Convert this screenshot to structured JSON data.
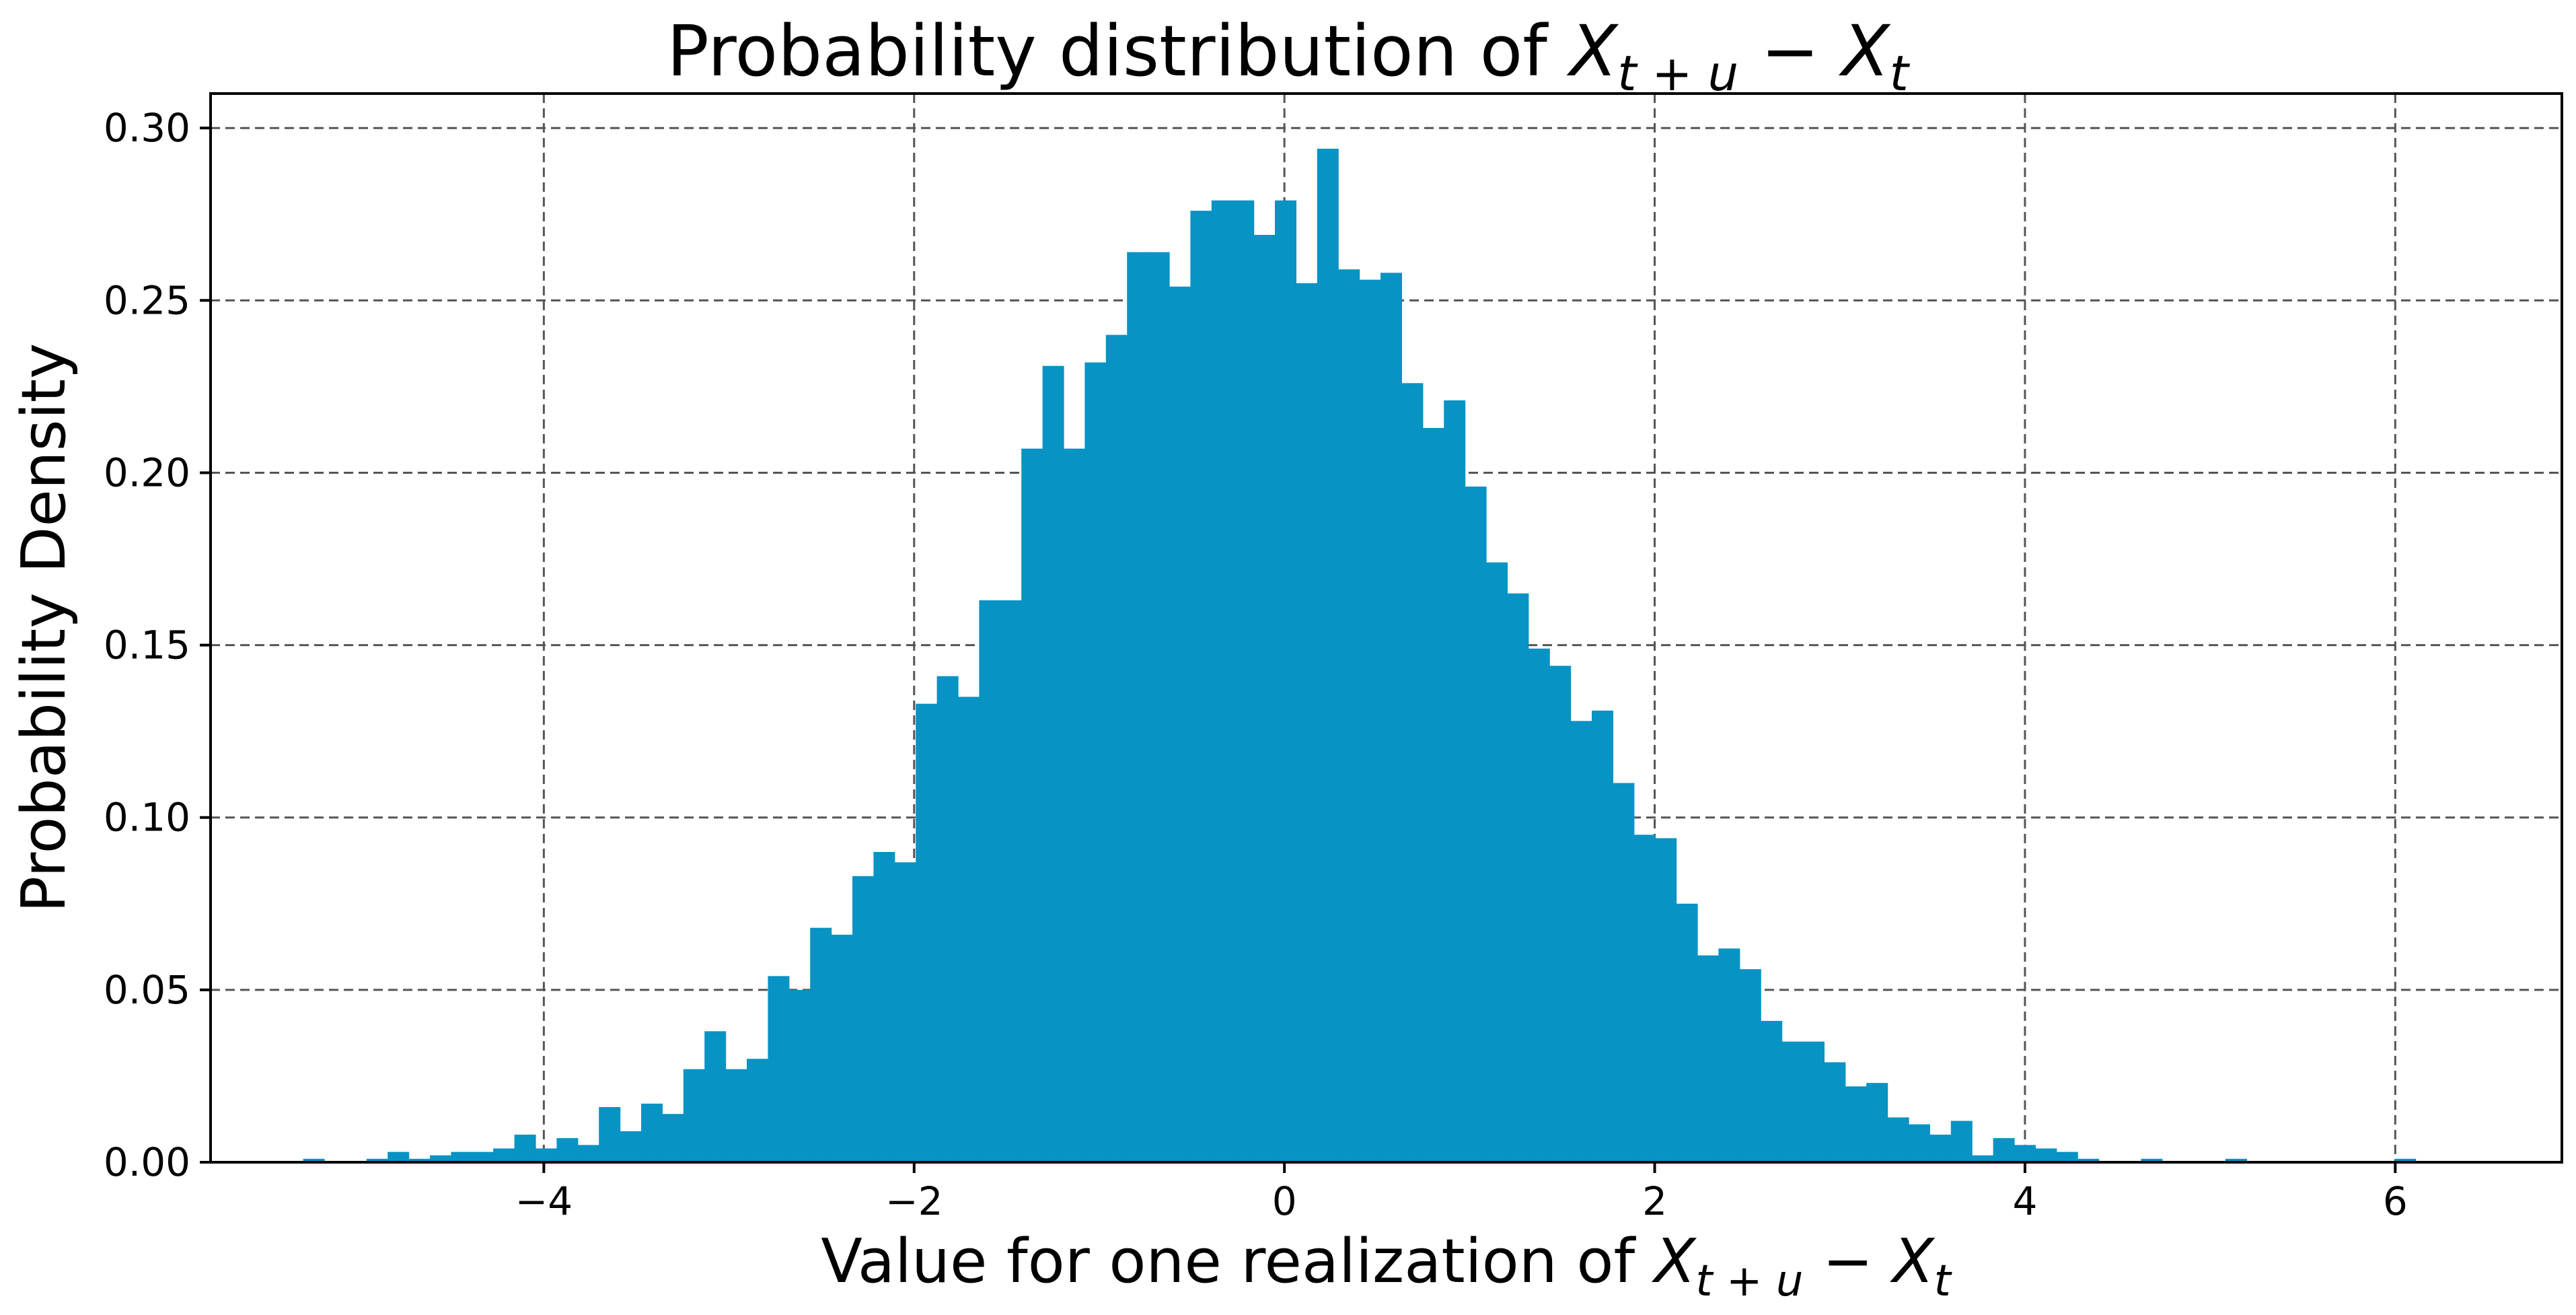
{
  "chart_data": {
    "type": "bar",
    "title": "Probability distribution of ",
    "title_math": {
      "main": "X",
      "sub1": "t + u",
      "minus": " − ",
      "main2": "X",
      "sub2": "t"
    },
    "xlabel": "Value for one realization of ",
    "ylabel": "Probability Density",
    "xlim": [
      -5.8,
      6.9
    ],
    "ylim": [
      0,
      0.31
    ],
    "xticks": [
      -4,
      -2,
      0,
      2,
      4,
      6
    ],
    "xtick_labels": [
      "−4",
      "−2",
      "0",
      "2",
      "4",
      "6"
    ],
    "yticks": [
      0.0,
      0.05,
      0.1,
      0.15,
      0.2,
      0.25,
      0.3
    ],
    "ytick_labels": [
      "0.00",
      "0.05",
      "0.10",
      "0.15",
      "0.20",
      "0.25",
      "0.30"
    ],
    "grid": true,
    "bar_color": "#0793c3",
    "bin_start": -5.3,
    "bin_width": 0.1141,
    "values": [
      0.001,
      0,
      0,
      0.001,
      0.003,
      0.001,
      0.002,
      0.003,
      0.003,
      0.004,
      0.008,
      0.004,
      0.007,
      0.005,
      0.016,
      0.009,
      0.017,
      0.014,
      0.027,
      0.038,
      0.027,
      0.03,
      0.054,
      0.05,
      0.068,
      0.066,
      0.083,
      0.09,
      0.087,
      0.133,
      0.141,
      0.135,
      0.163,
      0.163,
      0.207,
      0.231,
      0.207,
      0.232,
      0.24,
      0.264,
      0.264,
      0.254,
      0.276,
      0.279,
      0.279,
      0.269,
      0.279,
      0.255,
      0.294,
      0.259,
      0.256,
      0.258,
      0.226,
      0.213,
      0.221,
      0.196,
      0.174,
      0.165,
      0.149,
      0.144,
      0.128,
      0.131,
      0.11,
      0.095,
      0.094,
      0.075,
      0.06,
      0.062,
      0.056,
      0.041,
      0.035,
      0.035,
      0.029,
      0.022,
      0.023,
      0.013,
      0.011,
      0.008,
      0.012,
      0.002,
      0.007,
      0.005,
      0.004,
      0.003,
      0.001,
      0,
      0,
      0.001,
      0,
      0,
      0,
      0.001,
      0,
      0,
      0,
      0,
      0,
      0,
      0,
      0.001
    ]
  }
}
